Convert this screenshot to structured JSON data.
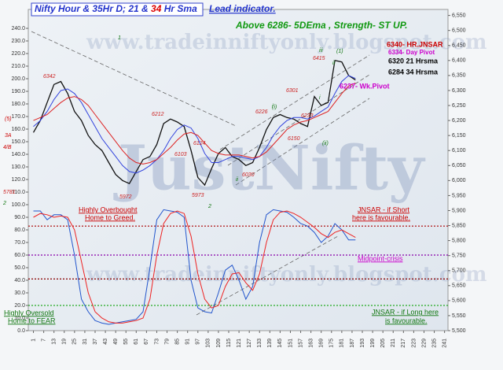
{
  "chart_data": {
    "type": "line",
    "title": [
      "Nifty Hour & 35Hr D; 21 & ",
      "34",
      " Hr Sma"
    ],
    "subtitle": "Lead indicator.",
    "headline": "Above 6286-  5DEma , Strength- ST UP.",
    "watermark": [
      "www.tradeinniftyonly.blogspot.com",
      "www.tradeinniftyonly.blogspot.com",
      "JustNifty"
    ],
    "levels_notes": [
      {
        "text": "6340- HR.JNSAR",
        "color": "#cc0000"
      },
      {
        "text": "6334- Day Pivot",
        "color": "#cc00cc"
      },
      {
        "text": "6320 21 Hrsma",
        "color": "#000000"
      },
      {
        "text": "6284 34 Hrsma",
        "color": "#000000"
      },
      {
        "text": "6237- Wk.Pivot",
        "color": "#cc00cc"
      }
    ],
    "annotations": [
      "Highly Overbought",
      "Home to Greed.",
      "JNSAR - if Short",
      "here is favourable.",
      "Midpoint-crisis",
      "Highly Oversold",
      "Home to FEAR",
      "JNSAR - if Long here",
      "is favourable."
    ],
    "point_labels": [
      "6342",
      "5972",
      "6212",
      "6103",
      "6124",
      "5973",
      "6030",
      "6226",
      "6150",
      "6301",
      "6233",
      "6415",
      "5781",
      "3A",
      "4/B",
      "(5)",
      "i",
      "ii",
      "iii",
      "(i)",
      "(ii)",
      "(1)",
      "ii",
      "i",
      "2",
      "2",
      "1"
    ],
    "x": [
      1,
      5,
      9,
      13,
      17,
      21,
      25,
      29,
      33,
      37,
      41,
      45,
      49,
      53,
      57,
      61,
      65,
      69,
      73,
      77,
      81,
      85,
      89,
      93,
      97,
      101,
      105,
      109,
      113,
      117,
      121,
      125,
      129,
      133,
      137,
      141,
      145,
      149,
      153,
      157,
      161,
      165,
      169,
      173,
      177,
      181,
      185,
      189
    ],
    "series": [
      {
        "axis": "y2",
        "color": "#111111",
        "values": [
          6160,
          6200,
          6260,
          6320,
          6330,
          6290,
          6230,
          6200,
          6150,
          6120,
          6100,
          6060,
          6020,
          6000,
          5990,
          6030,
          6070,
          6080,
          6120,
          6190,
          6205,
          6195,
          6180,
          6100,
          6010,
          5985,
          6040,
          6090,
          6110,
          6080,
          6070,
          6050,
          6060,
          6110,
          6170,
          6210,
          6220,
          6210,
          6205,
          6190,
          6180,
          6280,
          6250,
          6260,
          6400,
          6395,
          6350,
          6335
        ]
      },
      {
        "axis": "y2",
        "color": "#3344dd",
        "values": [
          6180,
          6200,
          6230,
          6270,
          6300,
          6305,
          6290,
          6260,
          6220,
          6180,
          6140,
          6110,
          6080,
          6050,
          6030,
          6025,
          6035,
          6050,
          6070,
          6100,
          6140,
          6170,
          6185,
          6175,
          6140,
          6090,
          6060,
          6060,
          6070,
          6080,
          6080,
          6075,
          6070,
          6080,
          6110,
          6150,
          6180,
          6200,
          6210,
          6210,
          6205,
          6215,
          6230,
          6245,
          6290,
          6330,
          6350,
          6340
        ]
      },
      {
        "axis": "y2",
        "color": "#dd2222",
        "values": [
          6200,
          6210,
          6220,
          6240,
          6260,
          6275,
          6280,
          6270,
          6250,
          6220,
          6190,
          6160,
          6130,
          6100,
          6075,
          6060,
          6055,
          6060,
          6070,
          6090,
          6110,
          6135,
          6155,
          6160,
          6150,
          6125,
          6100,
          6090,
          6085,
          6085,
          6085,
          6080,
          6075,
          6080,
          6095,
          6120,
          6145,
          6170,
          6185,
          6195,
          6200,
          6210,
          6220,
          6230,
          6260,
          6290,
          6315,
          6325
        ]
      },
      {
        "axis": "y",
        "color": "#2255cc",
        "values": [
          95,
          95,
          88,
          92,
          92,
          88,
          60,
          25,
          15,
          8,
          6,
          5,
          6,
          7,
          8,
          9,
          15,
          50,
          88,
          96,
          95,
          94,
          90,
          40,
          18,
          15,
          14,
          30,
          48,
          52,
          40,
          25,
          35,
          70,
          92,
          96,
          95,
          94,
          90,
          85,
          83,
          78,
          70,
          75,
          85,
          80,
          72,
          72
        ]
      },
      {
        "axis": "y",
        "color": "#ee2222",
        "values": [
          90,
          93,
          92,
          90,
          91,
          90,
          80,
          55,
          30,
          15,
          10,
          7,
          6,
          6,
          7,
          8,
          10,
          25,
          60,
          85,
          93,
          95,
          93,
          75,
          45,
          25,
          18,
          20,
          35,
          45,
          46,
          38,
          32,
          45,
          70,
          88,
          94,
          95,
          93,
          90,
          86,
          82,
          77,
          74,
          78,
          80,
          77,
          74
        ]
      }
    ],
    "levels": [
      {
        "value": 83,
        "color": "#aa0000"
      },
      {
        "value": 60,
        "color": "#8800aa"
      },
      {
        "value": 41,
        "color": "#880000"
      },
      {
        "value": 20,
        "color": "#22aa22"
      }
    ],
    "xlim": [
      -2,
      243
    ],
    "xticks": [
      1,
      7,
      13,
      19,
      25,
      31,
      37,
      43,
      49,
      55,
      61,
      67,
      73,
      79,
      85,
      91,
      97,
      103,
      109,
      115,
      121,
      127,
      133,
      139,
      145,
      151,
      157,
      163,
      169,
      175,
      181,
      187,
      193,
      199,
      205,
      211,
      217,
      223,
      229,
      235,
      241
    ],
    "ylim": [
      0,
      255
    ],
    "yticks": [
      {
        "value": 0,
        "label": "0.0"
      },
      {
        "value": 10,
        "label": "10.0"
      },
      {
        "value": 20,
        "label": "20.0"
      },
      {
        "value": 30,
        "label": "30.0"
      },
      {
        "value": 40,
        "label": "40.0"
      },
      {
        "value": 50,
        "label": "50.0"
      },
      {
        "value": 60,
        "label": "60.0"
      },
      {
        "value": 70,
        "label": "70.0"
      },
      {
        "value": 80,
        "label": "80.0"
      },
      {
        "value": 90,
        "label": "90.0"
      },
      {
        "value": 100,
        "label": "100.0"
      },
      {
        "value": 110,
        "label": "110.0"
      },
      {
        "value": 120,
        "label": "120.0"
      },
      {
        "value": 130,
        "label": "130.0"
      },
      {
        "value": 140,
        "label": "140.0"
      },
      {
        "value": 150,
        "label": "150.0"
      },
      {
        "value": 160,
        "label": "160.0"
      },
      {
        "value": 170,
        "label": "170.0"
      },
      {
        "value": 180,
        "label": "180.0"
      },
      {
        "value": 190,
        "label": "190.0"
      },
      {
        "value": 200,
        "label": "200.0"
      },
      {
        "value": 210,
        "label": "210.0"
      },
      {
        "value": 220,
        "label": "220.0"
      },
      {
        "value": 230,
        "label": "230.0"
      },
      {
        "value": 240,
        "label": "240.0"
      }
    ],
    "y2lim": [
      5500,
      6570
    ],
    "y2ticks": [
      {
        "value": 5500,
        "label": "5,500"
      },
      {
        "value": 5550,
        "label": "5,550"
      },
      {
        "value": 5600,
        "label": "5,600"
      },
      {
        "value": 5650,
        "label": "5,650"
      },
      {
        "value": 5700,
        "label": "5,700"
      },
      {
        "value": 5750,
        "label": "5,750"
      },
      {
        "value": 5800,
        "label": "5,800"
      },
      {
        "value": 5850,
        "label": "5,850"
      },
      {
        "value": 5900,
        "label": "5,900"
      },
      {
        "value": 5950,
        "label": "5,950"
      },
      {
        "value": 6000,
        "label": "6,000"
      },
      {
        "value": 6050,
        "label": "6,050"
      },
      {
        "value": 6100,
        "label": "6,100"
      },
      {
        "value": 6150,
        "label": "6,150"
      },
      {
        "value": 6200,
        "label": "6,200"
      },
      {
        "value": 6250,
        "label": "6,250"
      },
      {
        "value": 6300,
        "label": "6,300"
      },
      {
        "value": 6350,
        "label": "6,350"
      },
      {
        "value": 6400,
        "label": "6,400"
      },
      {
        "value": 6450,
        "label": "6,450"
      },
      {
        "value": 6500,
        "label": "6,500"
      },
      {
        "value": 6550,
        "label": "6,550"
      }
    ]
  }
}
